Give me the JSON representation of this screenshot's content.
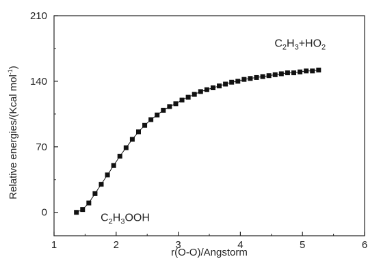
{
  "chart_data": {
    "type": "line",
    "xlabel": "r(O-O)/Angstorm",
    "ylabel_main": "Relative energies/(Kcal mol",
    "ylabel_sup": "-1",
    "ylabel_close": ")",
    "xlim": [
      1,
      6
    ],
    "ylim": [
      -25,
      210
    ],
    "xticks": [
      1,
      2,
      3,
      4,
      5,
      6
    ],
    "xtick_labels": [
      "1",
      "2",
      "3",
      "4",
      "5",
      "6"
    ],
    "yticks": [
      0,
      70,
      140,
      210
    ],
    "ytick_labels": [
      "0",
      "70",
      "140",
      "210"
    ],
    "grid": false,
    "legend": "none",
    "marker": "square",
    "color": "#111111",
    "annotations": {
      "reactant": {
        "p1": "C",
        "s1": "2",
        "p2": "H",
        "s2": "3",
        "p3": "OOH",
        "x": 1.75,
        "y": -5
      },
      "products": {
        "p1": "C",
        "s1": "2",
        "p2": "H",
        "s2": "3",
        "p3": "+HO",
        "s3": "2",
        "x": 4.55,
        "y": 181
      }
    },
    "series": [
      {
        "x": [
          1.36,
          1.46,
          1.56,
          1.66,
          1.76,
          1.86,
          1.96,
          2.06,
          2.16,
          2.26,
          2.36,
          2.46,
          2.56,
          2.66,
          2.76,
          2.86,
          2.96,
          3.06,
          3.16,
          3.26,
          3.36,
          3.46,
          3.56,
          3.66,
          3.76,
          3.86,
          3.96,
          4.06,
          4.16,
          4.26,
          4.36,
          4.46,
          4.56,
          4.66,
          4.76,
          4.86,
          4.96,
          5.06,
          5.16,
          5.26
        ],
        "y": [
          0,
          3,
          10,
          20,
          30,
          40,
          50,
          60,
          69,
          78,
          86,
          93,
          99,
          104,
          109,
          113,
          116,
          120,
          123,
          126,
          129,
          131,
          133,
          135,
          137,
          139,
          140,
          142,
          143,
          144,
          145,
          146,
          147,
          148,
          149,
          149,
          150,
          151,
          151,
          152
        ]
      }
    ]
  }
}
